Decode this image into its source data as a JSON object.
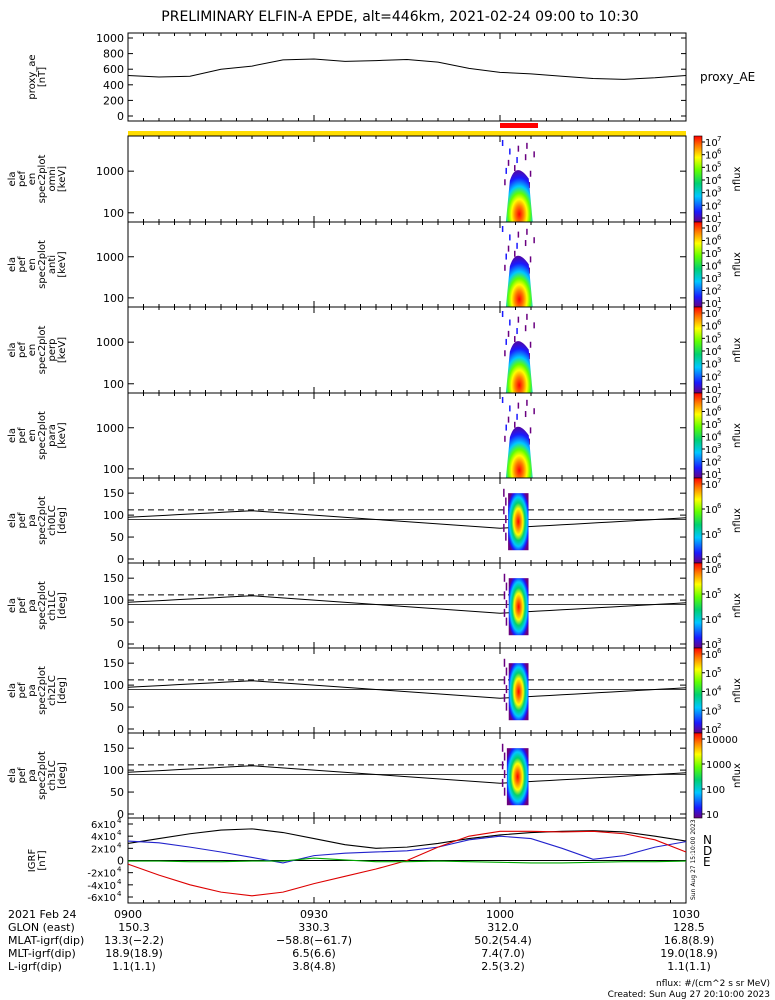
{
  "title": "PRELIMINARY ELFIN-A EPDE, alt=446km, 2021-02-24 09:00 to 10:30",
  "colors": {
    "n": "#2222cc",
    "d": "#dd0000",
    "e": "#00aa00",
    "total_line": "#000000",
    "science_zone_bar": "#ff0000",
    "orbit_bar": "#ffdd00"
  },
  "chart_data": [
    {
      "type": "line",
      "name": "proxy_ae",
      "ylabel": "proxy_ae\n[nT]",
      "legend": "proxy_AE",
      "ylim": [
        0,
        1000
      ],
      "yticks": [
        "1000",
        "800",
        "600",
        "400",
        "200",
        "0"
      ],
      "x_minutes": [
        0,
        5,
        10,
        15,
        20,
        25,
        30,
        35,
        40,
        45,
        50,
        55,
        60,
        65,
        70,
        75,
        80,
        85,
        90
      ],
      "values": [
        520,
        500,
        510,
        600,
        640,
        720,
        730,
        700,
        710,
        725,
        690,
        610,
        560,
        540,
        510,
        480,
        470,
        490,
        520
      ]
    },
    {
      "type": "heatmap",
      "name": "omni",
      "ylabel_lines": [
        "ela",
        "pef",
        "en",
        "spec2plot",
        "omni",
        "[keV]"
      ],
      "yscale": "log",
      "ylim": [
        60,
        7000
      ],
      "yticks": [
        "1000",
        "100"
      ],
      "time_window_min": [
        60.3,
        65.6
      ],
      "peak_time_min": 62.6,
      "zlabel": "nflux",
      "zlim": [
        10,
        10000000
      ],
      "ztick_exponents": [
        7,
        6,
        5,
        4,
        3,
        2,
        1
      ]
    },
    {
      "type": "heatmap",
      "name": "anti",
      "ylabel_lines": [
        "ela",
        "pef",
        "en",
        "spec2plot",
        "anti",
        "[keV]"
      ],
      "yscale": "log",
      "ylim": [
        60,
        7000
      ],
      "yticks": [
        "1000",
        "100"
      ],
      "time_window_min": [
        60.3,
        65.6
      ],
      "peak_time_min": 62.6,
      "zlabel": "nflux",
      "zlim": [
        10,
        10000000
      ],
      "ztick_exponents": [
        7,
        6,
        5,
        4,
        3,
        2,
        1
      ]
    },
    {
      "type": "heatmap",
      "name": "perp",
      "ylabel_lines": [
        "ela",
        "pef",
        "en",
        "spec2plot",
        "perp",
        "[keV]"
      ],
      "yscale": "log",
      "ylim": [
        60,
        7000
      ],
      "yticks": [
        "1000",
        "100"
      ],
      "time_window_min": [
        60.3,
        65.6
      ],
      "peak_time_min": 62.6,
      "zlabel": "nflux",
      "zlim": [
        10,
        10000000
      ],
      "ztick_exponents": [
        7,
        6,
        5,
        4,
        3,
        2,
        1
      ]
    },
    {
      "type": "heatmap",
      "name": "para",
      "ylabel_lines": [
        "ela",
        "pef",
        "en",
        "spec2plot",
        "para",
        "[keV]"
      ],
      "yscale": "log",
      "ylim": [
        60,
        7000
      ],
      "yticks": [
        "1000",
        "100"
      ],
      "time_window_min": [
        60.3,
        65.6
      ],
      "peak_time_min": 62.6,
      "zlabel": "nflux",
      "zlim": [
        10,
        10000000
      ],
      "ztick_exponents": [
        7,
        6,
        5,
        4,
        3,
        2,
        1
      ]
    },
    {
      "type": "heatmap",
      "name": "ch0LC",
      "ylabel_lines": [
        "ela",
        "pef",
        "pa",
        "spec2plot",
        "ch0LC",
        "[deg]"
      ],
      "ylim": [
        0,
        180
      ],
      "yticks": [
        "150",
        "100",
        "50",
        "0"
      ],
      "time_window_min": [
        60.5,
        64.6
      ],
      "zlabel": "nflux",
      "ztick_exponents": [
        7,
        6,
        5,
        4
      ]
    },
    {
      "type": "heatmap",
      "name": "ch1LC",
      "ylabel_lines": [
        "ela",
        "pef",
        "pa",
        "spec2plot",
        "ch1LC",
        "[deg]"
      ],
      "ylim": [
        0,
        180
      ],
      "yticks": [
        "150",
        "100",
        "50",
        "0"
      ],
      "time_window_min": [
        60.6,
        64.6
      ],
      "zlabel": "nflux",
      "ztick_exponents": [
        6,
        5,
        4,
        3
      ]
    },
    {
      "type": "heatmap",
      "name": "ch2LC",
      "ylabel_lines": [
        "ela",
        "pef",
        "pa",
        "spec2plot",
        "ch2LC",
        "[deg]"
      ],
      "ylim": [
        0,
        180
      ],
      "yticks": [
        "150",
        "100",
        "50",
        "0"
      ],
      "time_window_min": [
        60.6,
        64.6
      ],
      "zlabel": "nflux",
      "ztick_exponents": [
        6,
        5,
        4,
        3,
        2
      ]
    },
    {
      "type": "heatmap",
      "name": "ch3LC",
      "ylabel_lines": [
        "ela",
        "pef",
        "pa",
        "spec2plot",
        "ch3LC",
        "[deg]"
      ],
      "ylim": [
        0,
        180
      ],
      "yticks": [
        "150",
        "100",
        "50",
        "0"
      ],
      "time_window_min": [
        60.3,
        64.6
      ],
      "zlabel": "nflux",
      "zticks": [
        "10000",
        "1000",
        "100",
        "10"
      ]
    },
    {
      "type": "line",
      "name": "IGRF",
      "ylabel": "IGRF\n[nT]",
      "ylim": [
        -60000,
        60000
      ],
      "ytick_exponents_positive": [
        "6x10",
        "4x10",
        "2x10"
      ],
      "ytick_exponents_negative": [
        "-2x10",
        "-4x10",
        "-6x10"
      ],
      "ytick_zero": "0",
      "ytick_power": "4",
      "legend": [
        "N",
        "D",
        "E"
      ],
      "x_minutes": [
        0,
        5,
        10,
        15,
        20,
        25,
        30,
        35,
        40,
        45,
        50,
        55,
        60,
        65,
        70,
        75,
        80,
        85,
        90
      ],
      "series": [
        {
          "name": "total",
          "values": [
            28000,
            36000,
            44000,
            50000,
            52000,
            46000,
            36000,
            26000,
            20000,
            22000,
            28000,
            36000,
            42000,
            46000,
            48000,
            49000,
            47000,
            40000,
            32000
          ]
        },
        {
          "name": "N",
          "values": [
            32000,
            29000,
            22000,
            14000,
            5000,
            -4000,
            8000,
            12000,
            14000,
            16000,
            22000,
            34000,
            40000,
            36000,
            20000,
            2000,
            8000,
            22000,
            31000
          ]
        },
        {
          "name": "D",
          "values": [
            -6000,
            -24000,
            -40000,
            -52000,
            -58000,
            -52000,
            -38000,
            -26000,
            -14000,
            0,
            22000,
            40000,
            48000,
            48000,
            47000,
            48000,
            44000,
            34000,
            14000
          ]
        },
        {
          "name": "E",
          "values": [
            -1000,
            -1000,
            -2000,
            -2000,
            -1000,
            -1000,
            4000,
            1000,
            -2000,
            -2000,
            -1000,
            -2000,
            -3000,
            -4000,
            -4000,
            -3000,
            -2000,
            -2000,
            -1000
          ]
        }
      ]
    }
  ],
  "time_axis": {
    "label": "2021 Feb 24",
    "ticks": [
      "0900",
      "0930",
      "1000",
      "1030"
    ]
  },
  "footer": {
    "rows": [
      {
        "label": "GLON (east)",
        "values": [
          "150.3",
          "330.3",
          "312.0",
          "128.5"
        ]
      },
      {
        "label": "MLAT-igrf(dip)",
        "values": [
          "13.3(−2.2)",
          "−58.8(−61.7)",
          "50.2(54.4)",
          "16.8(8.9)"
        ]
      },
      {
        "label": "MLT-igrf(dip)",
        "values": [
          "18.9(18.9)",
          "6.5(6.6)",
          "7.4(7.0)",
          "19.0(18.9)"
        ]
      },
      {
        "label": "L-igrf(dip)",
        "values": [
          "1.1(1.1)",
          "3.8(4.8)",
          "2.5(3.2)",
          "1.1(1.1)"
        ]
      }
    ],
    "nflux_units": "nflux: #/(cm^2 s sr MeV)",
    "created": "Created: Sun Aug 27 20:10:00 2023",
    "side_stamp": "Sun Aug 27 15:10:00 2023"
  }
}
